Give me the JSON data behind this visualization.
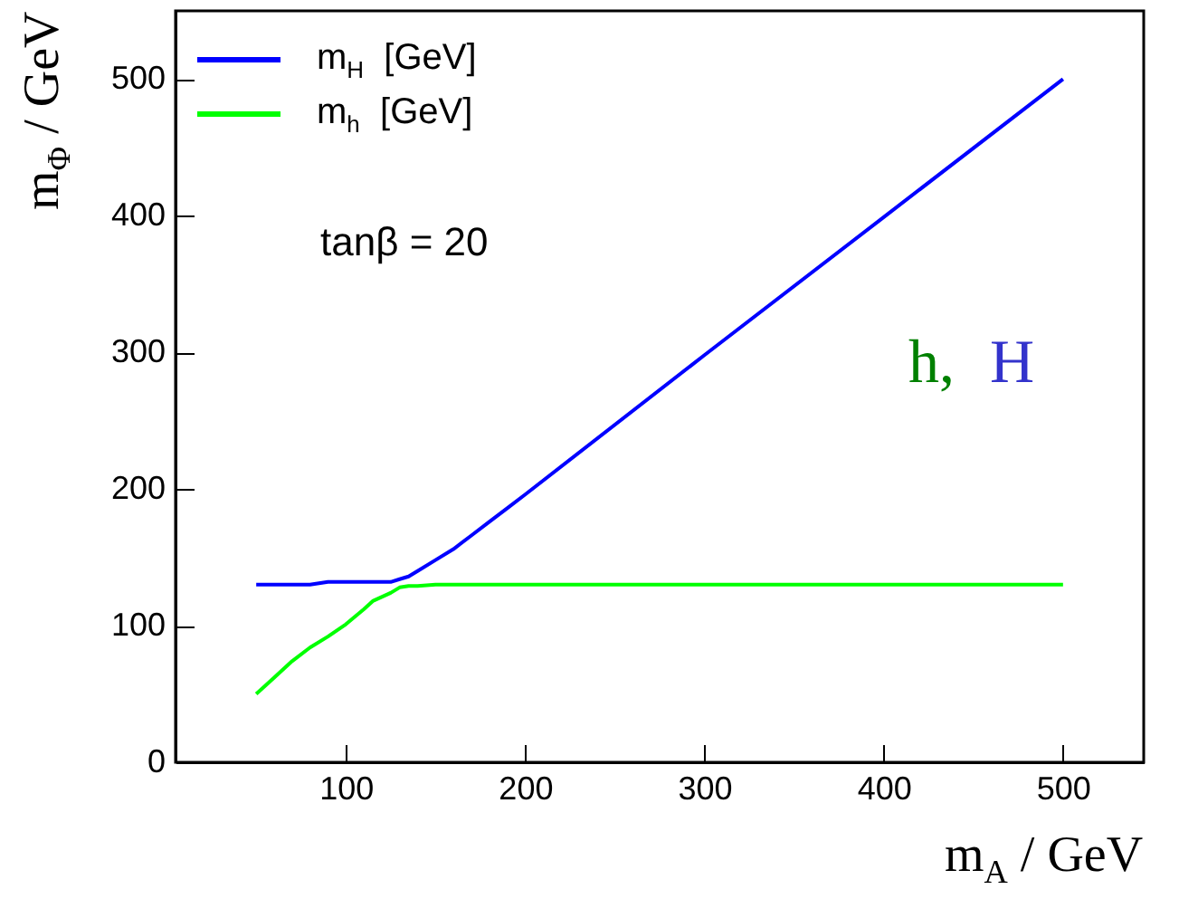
{
  "chart_data": {
    "type": "line",
    "xlabel": "m$_{A}$ / GeV",
    "ylabel": "m$_{Φ}$ / GeV",
    "xlim": [
      5,
      545
    ],
    "ylim": [
      0,
      550
    ],
    "xticks": [
      100,
      200,
      300,
      400,
      500
    ],
    "yticks": [
      0,
      100,
      200,
      300,
      400,
      500
    ],
    "legend": "top left",
    "annotations": [
      "tanβ = 20",
      "h, H"
    ],
    "series": [
      {
        "name": "m$_{H}$  [GeV]",
        "color": "#0000ff",
        "x": [
          50,
          80,
          90,
          100,
          110,
          120,
          125,
          130,
          135,
          140,
          150,
          160,
          170,
          180,
          190,
          200,
          300,
          400,
          500
        ],
        "values": [
          130,
          130,
          132,
          132,
          132,
          132,
          132,
          134,
          136,
          140,
          148,
          156,
          166,
          176,
          186,
          196,
          298,
          399,
          500
        ]
      },
      {
        "name": "m$_{h}$  [GeV]",
        "color": "#00ff00",
        "x": [
          50,
          60,
          70,
          80,
          90,
          100,
          110,
          115,
          120,
          125,
          130,
          135,
          140,
          150,
          200,
          300,
          400,
          500
        ],
        "values": [
          50,
          62,
          74,
          84,
          92,
          101,
          112,
          118,
          121,
          124,
          128,
          129,
          129,
          130,
          130,
          130,
          130,
          130
        ]
      }
    ]
  }
}
